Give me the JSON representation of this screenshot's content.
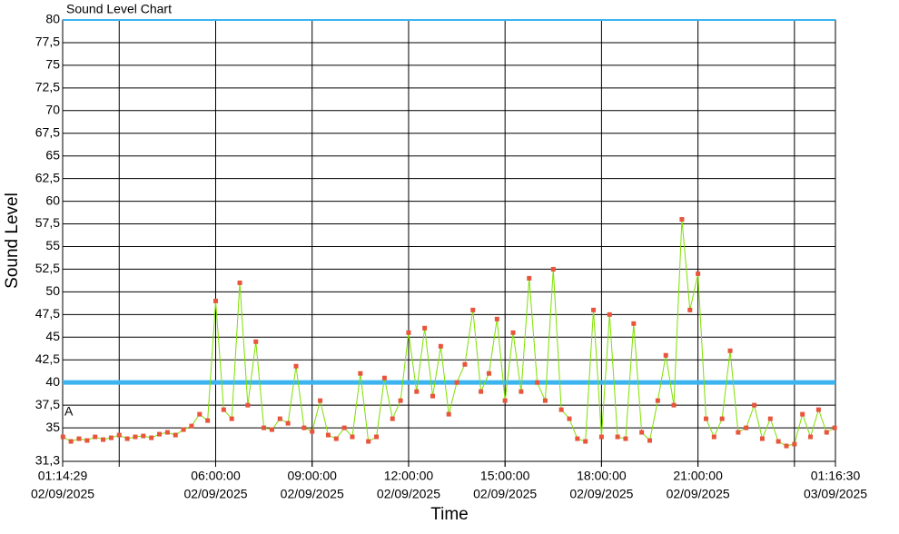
{
  "chart_data": {
    "type": "line",
    "title": "Sound Level Chart",
    "x_label": "Time",
    "y_label": "Sound Level",
    "annotation": "A",
    "threshold": 40,
    "threshold_color": "#3bb4f0",
    "xlim": [
      1.24139,
      25.275
    ],
    "xticks": [
      {
        "value": 1.24139,
        "label": [
          "01:14:29",
          "02/09/2025"
        ]
      },
      {
        "value": 6,
        "label": [
          "06:00:00",
          "02/09/2025"
        ]
      },
      {
        "value": 9,
        "label": [
          "09:00:00",
          "02/09/2025"
        ]
      },
      {
        "value": 12,
        "label": [
          "12:00:00",
          "02/09/2025"
        ]
      },
      {
        "value": 15,
        "label": [
          "15:00:00",
          "02/09/2025"
        ]
      },
      {
        "value": 18,
        "label": [
          "18:00:00",
          "02/09/2025"
        ]
      },
      {
        "value": 21,
        "label": [
          "21:00:00",
          "02/09/2025"
        ]
      },
      {
        "value": 25.275,
        "label": [
          "01:16:30",
          "03/09/2025"
        ]
      }
    ],
    "xgrid": [
      3,
      6,
      9,
      12,
      15,
      18,
      21,
      24
    ],
    "ylim": [
      31.3,
      80
    ],
    "yticks": [
      {
        "value": 31.3,
        "label": "31,3"
      },
      35,
      {
        "value": 37.5,
        "label": "37,5"
      },
      40,
      {
        "value": 42.5,
        "label": "42,5"
      },
      45,
      {
        "value": 47.5,
        "label": "47,5"
      },
      50,
      {
        "value": 52.5,
        "label": "52,5"
      },
      55,
      {
        "value": 57.5,
        "label": "57,5"
      },
      60,
      {
        "value": 62.5,
        "label": "62,5"
      },
      65,
      {
        "value": 67.5,
        "label": "67,5"
      },
      70,
      {
        "value": 72.5,
        "label": "72,5"
      },
      75,
      {
        "value": 77.5,
        "label": "77,5"
      },
      80
    ],
    "grid": true,
    "series": [
      {
        "color": "#7ee000",
        "marker_color": "#e8543c",
        "x": [
          1.25,
          1.5,
          1.75,
          2,
          2.25,
          2.5,
          2.75,
          3,
          3.25,
          3.5,
          3.75,
          4,
          4.25,
          4.5,
          4.75,
          5,
          5.25,
          5.5,
          5.75,
          6,
          6.25,
          6.5,
          6.75,
          7,
          7.25,
          7.5,
          7.75,
          8,
          8.25,
          8.5,
          8.75,
          9,
          9.25,
          9.5,
          9.75,
          10,
          10.25,
          10.5,
          10.75,
          11,
          11.25,
          11.5,
          11.75,
          12,
          12.25,
          12.5,
          12.75,
          13,
          13.25,
          13.5,
          13.75,
          14,
          14.25,
          14.5,
          14.75,
          15,
          15.25,
          15.5,
          15.75,
          16,
          16.25,
          16.5,
          16.75,
          17,
          17.25,
          17.5,
          17.75,
          18,
          18.25,
          18.5,
          18.75,
          19,
          19.25,
          19.5,
          19.75,
          20,
          20.25,
          20.5,
          20.75,
          21,
          21.25,
          21.5,
          21.75,
          22,
          22.25,
          22.5,
          22.75,
          23,
          23.25,
          23.5,
          23.75,
          24,
          24.25,
          24.5,
          24.75,
          25,
          25.25
        ],
        "values": [
          34,
          33.5,
          33.8,
          33.6,
          34,
          33.7,
          33.9,
          34.2,
          33.8,
          34,
          34.1,
          33.9,
          34.3,
          34.5,
          34.2,
          34.8,
          35.2,
          36.5,
          35.8,
          49,
          37,
          36,
          51,
          37.5,
          44.5,
          35,
          34.8,
          36,
          35.5,
          41.8,
          35,
          34.6,
          38,
          34.2,
          33.8,
          35,
          34,
          41,
          33.5,
          34,
          40.5,
          36,
          38,
          45.5,
          39,
          46,
          38.5,
          44,
          36.5,
          40,
          42,
          48,
          39,
          41,
          47,
          38,
          45.5,
          39,
          51.5,
          40,
          38,
          52.5,
          37,
          36,
          33.8,
          33.5,
          48,
          34,
          47.5,
          34,
          33.8,
          46.5,
          34.5,
          33.6,
          38,
          43,
          37.5,
          58,
          48,
          52,
          36,
          34,
          36,
          43.5,
          34.5,
          35,
          37.5,
          33.8,
          36,
          33.5,
          33,
          33.2,
          36.5,
          34,
          37,
          34.5,
          35
        ]
      }
    ]
  }
}
